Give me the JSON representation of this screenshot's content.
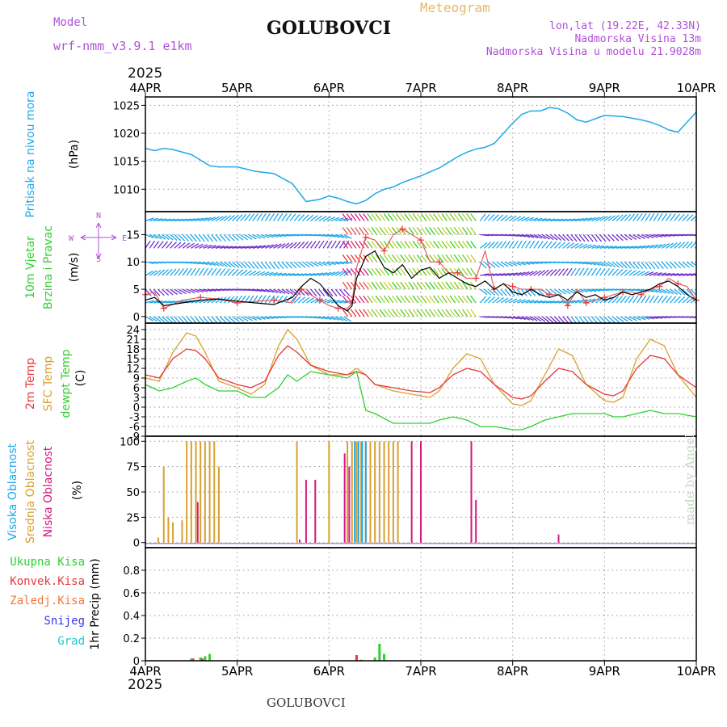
{
  "header": {
    "model_label": "Model",
    "model_name": "wrf-nmm_v3.9.1 e1km",
    "station": "GOLUBOVCI",
    "title": "Meteogram",
    "lonlat": "lon,lat (19.22E, 42.33N)",
    "elevation": "Nadmorska Visina 13m",
    "model_elevation": "Nadmorska Visina u modelu 21.9028m",
    "year_top": "2025",
    "year_bottom": "2025",
    "footer_station": "GOLUBOVCI",
    "watermark": "made by Angel"
  },
  "colors": {
    "purple": "#b050d8",
    "cyan": "#20a8e8",
    "red": "#e83838",
    "orange": "#d8a030",
    "green": "#30d030",
    "magenta": "#d81880",
    "blue": "#3838e8",
    "teal": "#20c8c8",
    "grid": "#999999"
  },
  "x_axis": {
    "ticks": [
      "4APR",
      "5APR",
      "6APR",
      "7APR",
      "8APR",
      "9APR",
      "10APR"
    ]
  },
  "chart_data": [
    {
      "type": "line",
      "panel": "pressure",
      "ylabel": [
        "Pritisak na nivou mora",
        "(hPa)"
      ],
      "ylim": [
        1006,
        1026.5
      ],
      "yticks": [
        1010,
        1015,
        1020,
        1025
      ],
      "x": [
        0,
        0.1,
        0.2,
        0.3,
        0.5,
        0.7,
        0.8,
        1.0,
        1.2,
        1.4,
        1.6,
        1.75,
        1.9,
        2.0,
        2.1,
        2.2,
        2.3,
        2.4,
        2.5,
        2.6,
        2.7,
        2.8,
        3.0,
        3.2,
        3.4,
        3.5,
        3.6,
        3.7,
        3.8,
        3.9,
        4.0,
        4.1,
        4.2,
        4.3,
        4.4,
        4.5,
        4.6,
        4.7,
        4.8,
        4.9,
        5.0,
        5.2,
        5.4,
        5.5,
        5.6,
        5.7,
        5.8,
        5.9,
        6.0
      ],
      "series": [
        {
          "values": [
            1017.3,
            1016.9,
            1017.3,
            1017.1,
            1016.2,
            1014.2,
            1014.0,
            1014.0,
            1013.2,
            1012.8,
            1011.0,
            1007.8,
            1008.2,
            1008.8,
            1008.4,
            1007.8,
            1007.4,
            1008.0,
            1009.2,
            1010.0,
            1010.4,
            1011.2,
            1012.4,
            1013.8,
            1015.8,
            1016.6,
            1017.2,
            1017.5,
            1018.2,
            1020.0,
            1021.8,
            1023.4,
            1024.0,
            1024.0,
            1024.6,
            1024.4,
            1023.6,
            1022.4,
            1022.0,
            1022.6,
            1023.2,
            1023.0,
            1022.4,
            1022.0,
            1021.4,
            1020.6,
            1020.2,
            1022.0,
            1023.8
          ]
        }
      ]
    },
    {
      "type": "line",
      "panel": "wind",
      "ylabel": [
        "10m Vjetar",
        "Brzina i Pravac",
        "(m/s)"
      ],
      "ylim": [
        -1.2,
        19.2
      ],
      "yticks": [
        0,
        5,
        10,
        15
      ],
      "compass": {
        "n": "N",
        "w": "W",
        "e": "E",
        "s": "S"
      },
      "x": [
        0,
        0.1,
        0.2,
        0.4,
        0.6,
        0.8,
        1.0,
        1.2,
        1.4,
        1.6,
        1.7,
        1.8,
        1.9,
        2.0,
        2.1,
        2.2,
        2.25,
        2.3,
        2.4,
        2.5,
        2.6,
        2.7,
        2.8,
        2.9,
        3.0,
        3.1,
        3.2,
        3.3,
        3.4,
        3.5,
        3.6,
        3.7,
        3.8,
        3.9,
        4.0,
        4.1,
        4.2,
        4.3,
        4.4,
        4.5,
        4.6,
        4.7,
        4.8,
        4.9,
        5.0,
        5.1,
        5.2,
        5.3,
        5.4,
        5.5,
        5.6,
        5.7,
        5.8,
        5.9,
        6.0
      ],
      "series": [
        {
          "name": "mean",
          "values": [
            3.0,
            3.5,
            2.0,
            2.5,
            3.0,
            3.2,
            2.8,
            2.5,
            2.2,
            3.5,
            5.5,
            7.0,
            6.0,
            4.0,
            2.0,
            1.0,
            2.0,
            7.0,
            11.0,
            12.0,
            9.0,
            8.0,
            9.5,
            7.0,
            8.5,
            9.0,
            7.0,
            8.0,
            7.0,
            6.0,
            5.5,
            6.5,
            5.0,
            6.0,
            4.5,
            4.0,
            5.0,
            4.0,
            3.5,
            4.0,
            3.0,
            4.5,
            3.5,
            4.0,
            3.0,
            3.5,
            4.5,
            4.0,
            4.5,
            5.0,
            6.0,
            6.5,
            5.5,
            4.0,
            3.0
          ]
        },
        {
          "name": "gust",
          "values": [
            4.0,
            4.5,
            1.5,
            3.0,
            3.5,
            3.2,
            2.5,
            2.8,
            3.0,
            2.5,
            5.0,
            4.0,
            3.0,
            2.0,
            1.5,
            1.5,
            2.5,
            9.0,
            14.5,
            14.0,
            12.0,
            15.0,
            16.0,
            15.0,
            14.0,
            10.0,
            10.0,
            8.0,
            8.0,
            7.0,
            7.0,
            12.0,
            5.0,
            6.0,
            5.5,
            5.0,
            5.0,
            5.0,
            4.0,
            4.0,
            2.0,
            5.0,
            2.5,
            3.0,
            3.5,
            4.0,
            4.5,
            4.5,
            4.0,
            5.0,
            5.5,
            7.0,
            6.0,
            5.5,
            3.0
          ]
        }
      ]
    },
    {
      "type": "line",
      "panel": "temperature",
      "ylabel": [
        "2m Temp",
        "SFC Temp",
        "dewpt Temp",
        "(C)"
      ],
      "ylim": [
        -9,
        26
      ],
      "yticks": [
        -9,
        -6,
        -3,
        0,
        3,
        6,
        9,
        12,
        15,
        18,
        21,
        24
      ],
      "x": [
        0,
        0.15,
        0.3,
        0.45,
        0.55,
        0.65,
        0.8,
        1.0,
        1.15,
        1.3,
        1.45,
        1.55,
        1.65,
        1.8,
        2.0,
        2.2,
        2.3,
        2.4,
        2.5,
        2.7,
        2.9,
        3.1,
        3.2,
        3.35,
        3.5,
        3.65,
        3.8,
        4.0,
        4.1,
        4.2,
        4.35,
        4.5,
        4.65,
        4.8,
        5.0,
        5.1,
        5.2,
        5.35,
        5.5,
        5.65,
        5.8,
        6.0
      ],
      "series": [
        {
          "name": "2m Temp",
          "values": [
            10,
            9,
            15,
            18,
            17.5,
            15,
            9,
            7,
            6,
            8,
            16,
            19,
            17,
            13,
            11,
            10,
            11,
            10,
            7,
            6,
            5,
            4.5,
            6,
            10,
            12,
            11,
            7,
            3,
            2.5,
            3.5,
            8,
            12,
            11,
            7,
            4,
            3.5,
            5,
            12,
            16,
            15,
            10,
            6
          ]
        },
        {
          "name": "SFC Temp",
          "values": [
            9,
            8,
            17,
            23,
            22,
            17,
            8,
            6,
            4,
            7,
            19,
            24,
            21,
            13,
            10,
            10,
            12,
            10,
            7,
            5,
            4,
            3,
            5,
            12,
            16.5,
            15,
            7,
            1,
            0.5,
            2,
            10,
            18,
            16,
            7,
            2,
            1.5,
            3,
            15,
            21,
            19,
            10,
            3
          ]
        },
        {
          "name": "dewpt Temp",
          "values": [
            7,
            5,
            6,
            8,
            9,
            7,
            5,
            5,
            3,
            3,
            6,
            10,
            8,
            11,
            10,
            9,
            11,
            -1,
            -2,
            -5,
            -5,
            -5,
            -4,
            -3,
            -4,
            -6,
            -6,
            -7,
            -7,
            -6,
            -4,
            -3,
            -2,
            -2,
            -2,
            -3,
            -3,
            -2,
            -1,
            -2,
            -2,
            -3
          ]
        }
      ]
    },
    {
      "type": "bar",
      "panel": "cloudiness",
      "ylabel": [
        "Visoka Oblacnost",
        "Srednja Oblacnost",
        "Niska Oblacnost",
        "(%)"
      ],
      "ylim": [
        -5,
        105
      ],
      "yticks": [
        0,
        25,
        50,
        75,
        100
      ],
      "series": [
        {
          "name": "Srednja Oblacnost",
          "x": [
            0.14,
            0.2,
            0.25,
            0.3,
            0.4,
            0.45,
            0.5,
            0.55,
            0.6,
            0.65,
            0.7,
            0.75,
            0.8,
            1.65,
            2.0,
            2.2,
            2.25,
            2.3,
            2.35,
            2.4,
            2.45,
            2.5,
            2.55,
            2.6,
            2.65,
            2.7,
            2.75
          ],
          "values": [
            5,
            75,
            25,
            20,
            22,
            100,
            100,
            100,
            100,
            100,
            100,
            100,
            75,
            100,
            100,
            100,
            100,
            100,
            100,
            100,
            100,
            100,
            100,
            100,
            100,
            100,
            100
          ]
        },
        {
          "name": "Niska Oblacnost",
          "x": [
            0.57,
            1.68,
            1.75,
            1.85,
            2.17,
            2.22,
            2.9,
            3.0,
            3.55,
            3.6,
            4.5
          ],
          "values": [
            40,
            3,
            62,
            62,
            88,
            75,
            100,
            100,
            100,
            42,
            8
          ]
        },
        {
          "name": "Visoka Oblacnost",
          "x": [
            2.28,
            2.32,
            2.36,
            2.4
          ],
          "values": [
            100,
            100,
            100,
            100
          ]
        }
      ]
    },
    {
      "type": "bar",
      "panel": "precipitation",
      "ylabel": [
        "1hr Precip (mm)"
      ],
      "legend": [
        "Ukupna Kisa",
        "Konvek.Kisa",
        "Zaledj.Kisa",
        "Snijeg",
        "Grad"
      ],
      "ylim": [
        0,
        1.0
      ],
      "yticks": [
        0,
        0.2,
        0.4,
        0.6,
        0.8
      ],
      "series": [
        {
          "name": "Ukupna Kisa",
          "x": [
            0.5,
            0.6,
            0.65,
            0.7,
            2.35,
            2.5,
            2.55,
            2.6
          ],
          "values": [
            0.02,
            0.03,
            0.04,
            0.06,
            0.01,
            0.03,
            0.15,
            0.06
          ]
        },
        {
          "name": "Konvek.Kisa",
          "x": [
            0.52,
            0.62,
            2.3
          ],
          "values": [
            0.02,
            0.02,
            0.05
          ]
        }
      ]
    }
  ]
}
